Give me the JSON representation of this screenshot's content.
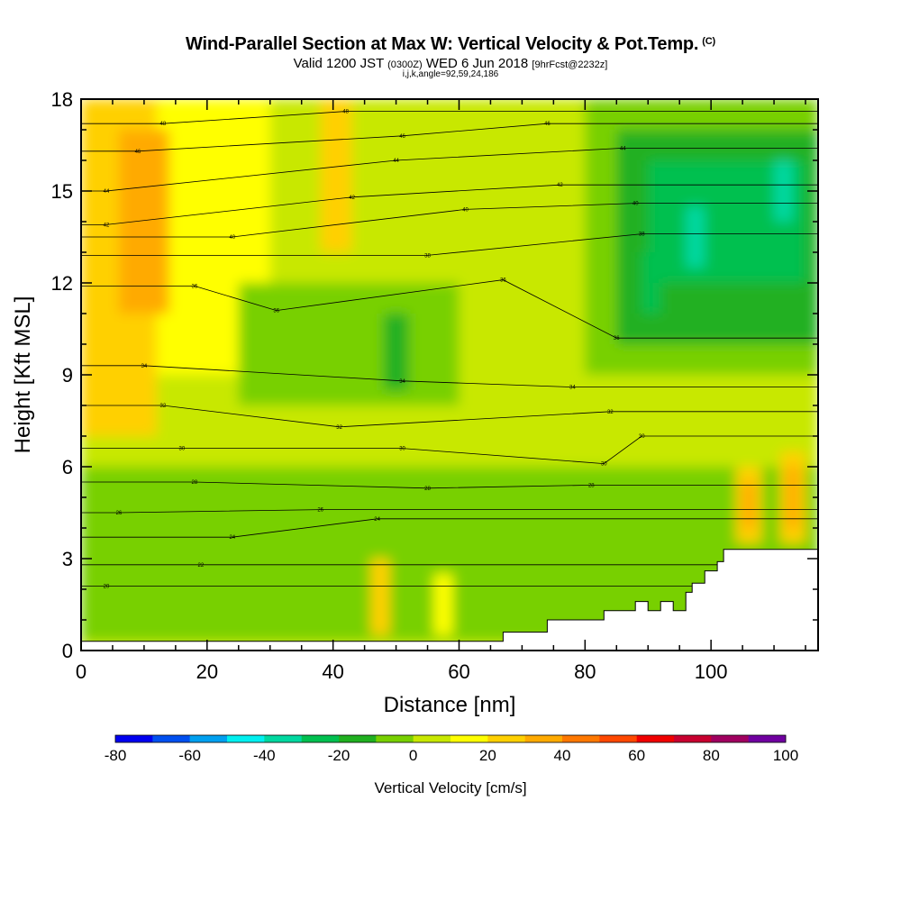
{
  "header": {
    "title": "Wind-Parallel Section at Max W: Vertical Velocity & Pot.Temp.",
    "title_mark": "(C)",
    "valid_prefix": "Valid 1200 JST",
    "valid_utc": "(0300Z)",
    "valid_date": "WED 6 Jun 2018",
    "forecast": "[9hrFcst@2232z]",
    "params": "i,j,k,angle=92,59,24,186"
  },
  "chart_data": {
    "type": "heatmap",
    "xlabel": "Distance [nm]",
    "ylabel": "Height [Kft MSL]",
    "xlim": [
      0,
      117
    ],
    "ylim": [
      0,
      18
    ],
    "x_ticks": [
      0,
      20,
      40,
      60,
      80,
      100
    ],
    "y_ticks": [
      0,
      3,
      6,
      9,
      12,
      15,
      18
    ],
    "colorbar": {
      "label": "Vertical Velocity [cm/s]",
      "ticks": [
        -80,
        -60,
        -40,
        -20,
        0,
        20,
        40,
        60,
        80,
        100
      ],
      "range": [
        -80,
        100
      ],
      "step": 10,
      "colors": [
        "#0000f0",
        "#0050f0",
        "#00a0f0",
        "#00f0f0",
        "#00d8a0",
        "#00c050",
        "#20b020",
        "#78d000",
        "#c8e800",
        "#ffff00",
        "#ffd000",
        "#ffaa00",
        "#ff7800",
        "#ff4800",
        "#f00000",
        "#c80030",
        "#a00060",
        "#7000a0"
      ]
    },
    "terrain_kft": [
      [
        0,
        0.3
      ],
      [
        67,
        0.3
      ],
      [
        67,
        0.6
      ],
      [
        74,
        0.6
      ],
      [
        74,
        1.0
      ],
      [
        83,
        1.0
      ],
      [
        83,
        1.3
      ],
      [
        88,
        1.3
      ],
      [
        88,
        1.6
      ],
      [
        90,
        1.6
      ],
      [
        90,
        1.3
      ],
      [
        92,
        1.3
      ],
      [
        92,
        1.6
      ],
      [
        94,
        1.6
      ],
      [
        94,
        1.3
      ],
      [
        96,
        1.3
      ],
      [
        96,
        1.9
      ],
      [
        97,
        1.9
      ],
      [
        97,
        2.2
      ],
      [
        99,
        2.2
      ],
      [
        99,
        2.6
      ],
      [
        101,
        2.6
      ],
      [
        101,
        2.9
      ],
      [
        102,
        2.9
      ],
      [
        102,
        3.3
      ],
      [
        117,
        3.3
      ]
    ],
    "w_regions": [
      {
        "x": [
          0,
          117
        ],
        "y": [
          0,
          18
        ],
        "w": 0
      },
      {
        "x": [
          0,
          30
        ],
        "y": [
          9,
          18
        ],
        "w": 10
      },
      {
        "x": [
          0,
          12
        ],
        "y": [
          7,
          18
        ],
        "w": 20
      },
      {
        "x": [
          6,
          14
        ],
        "y": [
          11,
          17
        ],
        "w": 30
      },
      {
        "x": [
          38,
          43
        ],
        "y": [
          13,
          18
        ],
        "w": 20
      },
      {
        "x": [
          0,
          117
        ],
        "y": [
          0.3,
          6
        ],
        "w": -10
      },
      {
        "x": [
          25,
          60
        ],
        "y": [
          8,
          12
        ],
        "w": -10
      },
      {
        "x": [
          80,
          117
        ],
        "y": [
          9,
          18
        ],
        "w": -10
      },
      {
        "x": [
          85,
          117
        ],
        "y": [
          10,
          17
        ],
        "w": -20
      },
      {
        "x": [
          90,
          115
        ],
        "y": [
          12,
          16
        ],
        "w": -30
      },
      {
        "x": [
          96,
          99
        ],
        "y": [
          12.5,
          14.5
        ],
        "w": -40
      },
      {
        "x": [
          110,
          113
        ],
        "y": [
          14,
          16
        ],
        "w": -40
      },
      {
        "x": [
          48,
          52
        ],
        "y": [
          8.5,
          11
        ],
        "w": -20
      },
      {
        "x": [
          89,
          92
        ],
        "y": [
          11,
          13
        ],
        "w": -30
      },
      {
        "x": [
          104,
          108
        ],
        "y": [
          3.5,
          6
        ],
        "w": 20
      },
      {
        "x": [
          105,
          107
        ],
        "y": [
          4,
          5.5
        ],
        "w": 30
      },
      {
        "x": [
          111,
          115
        ],
        "y": [
          3.5,
          6.5
        ],
        "w": 20
      },
      {
        "x": [
          112,
          114
        ],
        "y": [
          4,
          6
        ],
        "w": 30
      },
      {
        "x": [
          46,
          49
        ],
        "y": [
          0.5,
          3
        ],
        "w": 20
      },
      {
        "x": [
          56,
          59
        ],
        "y": [
          0.5,
          2.5
        ],
        "w": 10
      }
    ],
    "theta_contours": [
      {
        "value": 20,
        "x": 4,
        "y": 2.1
      },
      {
        "value": 22,
        "x": 19,
        "y": 2.8
      },
      {
        "value": 24,
        "x": 24,
        "y": 3.7
      },
      {
        "value": 24,
        "x": 47,
        "y": 4.3
      },
      {
        "value": 26,
        "x": 6,
        "y": 4.5
      },
      {
        "value": 26,
        "x": 38,
        "y": 4.6
      },
      {
        "value": 28,
        "x": 18,
        "y": 5.5
      },
      {
        "value": 28,
        "x": 55,
        "y": 5.3
      },
      {
        "value": 28,
        "x": 81,
        "y": 5.4
      },
      {
        "value": 30,
        "x": 16,
        "y": 6.6
      },
      {
        "value": 30,
        "x": 51,
        "y": 6.6
      },
      {
        "value": 30,
        "x": 83,
        "y": 6.1
      },
      {
        "value": 30,
        "x": 89,
        "y": 7.0
      },
      {
        "value": 32,
        "x": 13,
        "y": 8.0
      },
      {
        "value": 32,
        "x": 41,
        "y": 7.3
      },
      {
        "value": 32,
        "x": 84,
        "y": 7.8
      },
      {
        "value": 34,
        "x": 10,
        "y": 9.3
      },
      {
        "value": 34,
        "x": 51,
        "y": 8.8
      },
      {
        "value": 34,
        "x": 78,
        "y": 8.6
      },
      {
        "value": 36,
        "x": 18,
        "y": 11.9
      },
      {
        "value": 36,
        "x": 31,
        "y": 11.1
      },
      {
        "value": 36,
        "x": 85,
        "y": 10.2
      },
      {
        "value": 36,
        "x": 67,
        "y": 12.1
      },
      {
        "value": 38,
        "x": 55,
        "y": 12.9
      },
      {
        "value": 38,
        "x": 89,
        "y": 13.6
      },
      {
        "value": 40,
        "x": 24,
        "y": 13.5
      },
      {
        "value": 40,
        "x": 61,
        "y": 14.4
      },
      {
        "value": 40,
        "x": 88,
        "y": 14.6
      },
      {
        "value": 42,
        "x": 4,
        "y": 13.9
      },
      {
        "value": 42,
        "x": 43,
        "y": 14.8
      },
      {
        "value": 42,
        "x": 76,
        "y": 15.2
      },
      {
        "value": 44,
        "x": 4,
        "y": 15.0
      },
      {
        "value": 44,
        "x": 50,
        "y": 16.0
      },
      {
        "value": 44,
        "x": 86,
        "y": 16.4
      },
      {
        "value": 46,
        "x": 9,
        "y": 16.3
      },
      {
        "value": 46,
        "x": 51,
        "y": 16.8
      },
      {
        "value": 46,
        "x": 74,
        "y": 17.2
      },
      {
        "value": 48,
        "x": 13,
        "y": 17.2
      },
      {
        "value": 48,
        "x": 42,
        "y": 17.6
      }
    ]
  }
}
